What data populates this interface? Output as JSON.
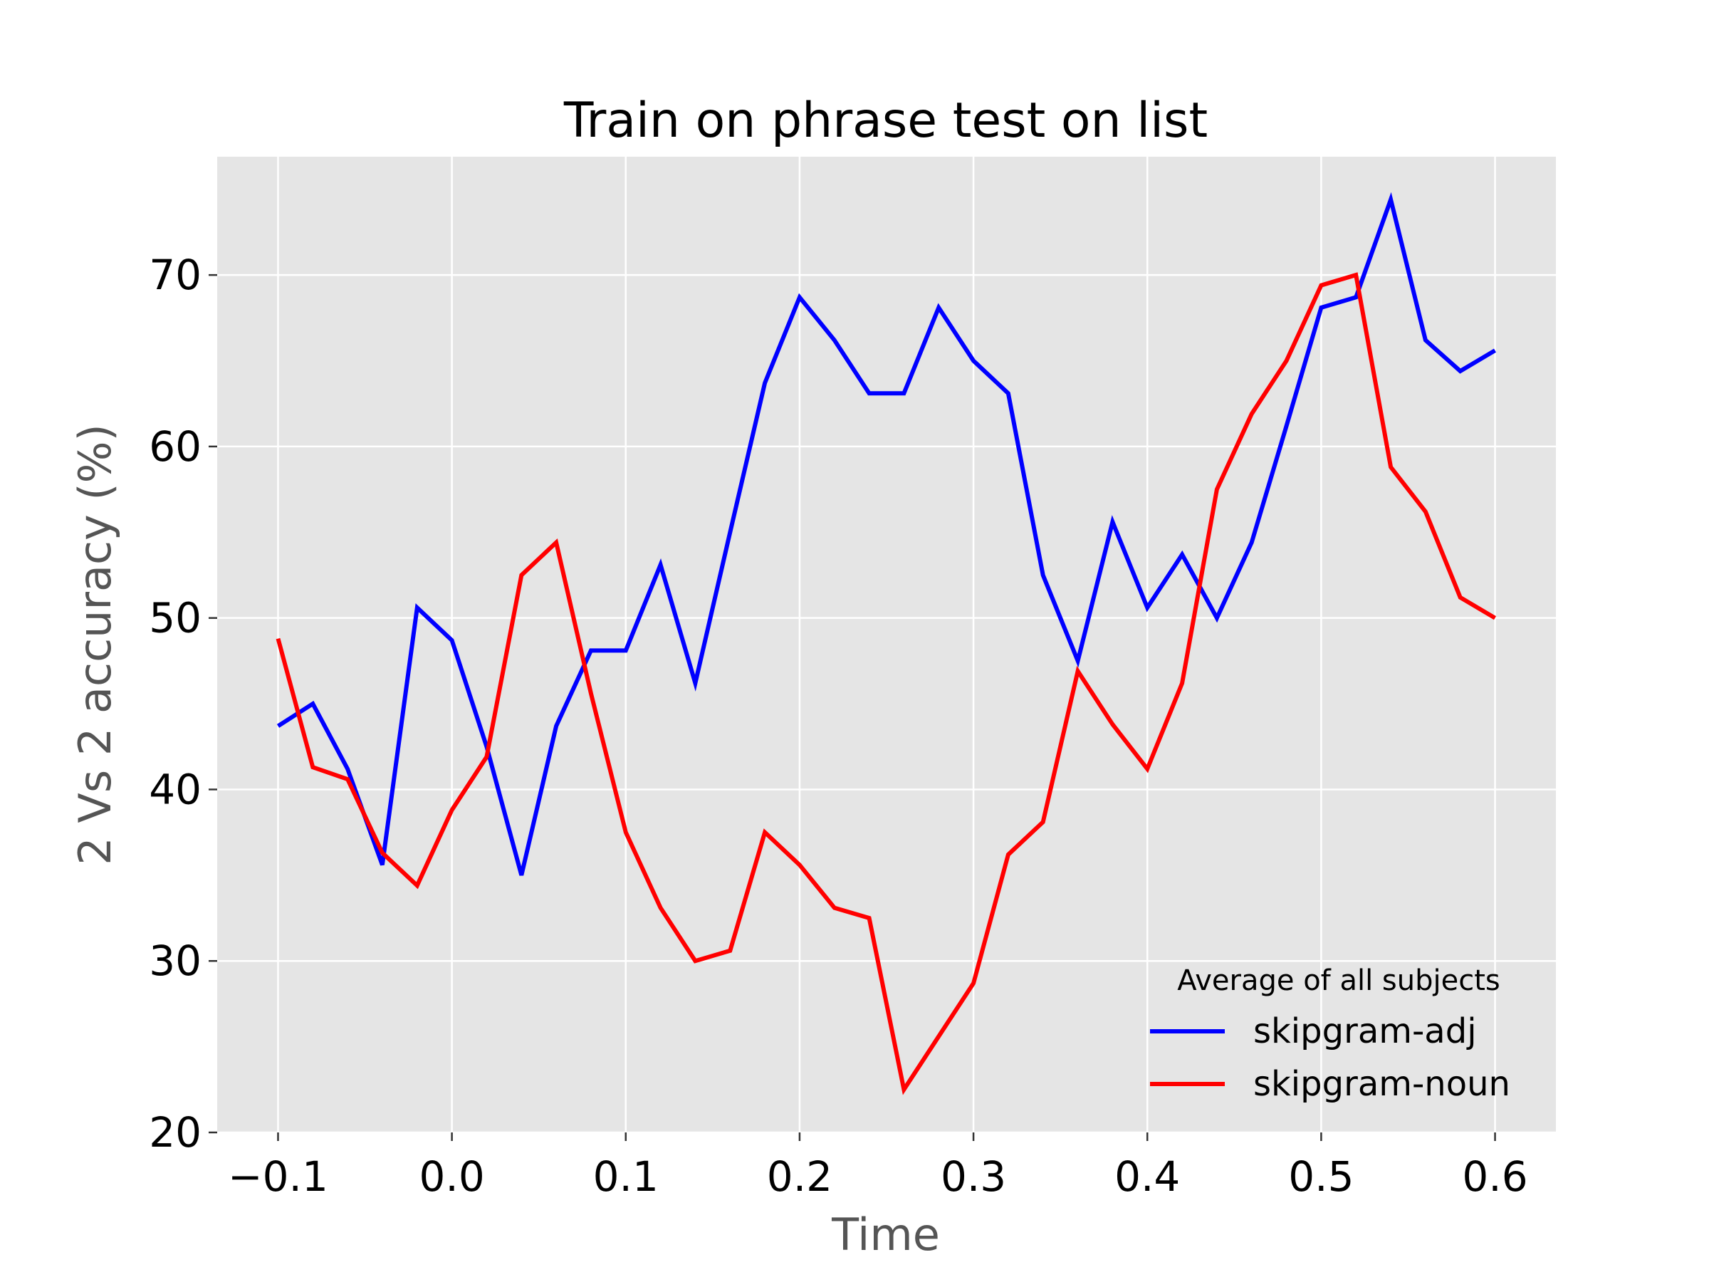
{
  "chart_data": {
    "type": "line",
    "title": "Train on phrase test on list",
    "xlabel": "Time",
    "ylabel": "2 Vs 2 accuracy (%)",
    "xlim": [
      -0.135,
      0.635
    ],
    "ylim": [
      20,
      76.9
    ],
    "x_ticks": [
      -0.1,
      0.0,
      0.1,
      0.2,
      0.3,
      0.4,
      0.5,
      0.6
    ],
    "x_tick_labels": [
      "−0.1",
      "0.0",
      "0.1",
      "0.2",
      "0.3",
      "0.4",
      "0.5",
      "0.6"
    ],
    "y_ticks": [
      20,
      30,
      40,
      50,
      60,
      70
    ],
    "y_tick_labels": [
      "20",
      "30",
      "40",
      "50",
      "60",
      "70"
    ],
    "grid": true,
    "background": "#e5e5e5",
    "legend": {
      "title": "Average of all subjects",
      "position": "lower-right"
    },
    "x": [
      -0.1,
      -0.08,
      -0.06,
      -0.04,
      -0.02,
      0.0,
      0.02,
      0.04,
      0.06,
      0.08,
      0.1,
      0.12,
      0.14,
      0.16,
      0.18,
      0.2,
      0.22,
      0.24,
      0.26,
      0.28,
      0.3,
      0.32,
      0.34,
      0.36,
      0.38,
      0.4,
      0.42,
      0.44,
      0.46,
      0.48,
      0.5,
      0.52,
      0.54,
      0.56,
      0.58,
      0.6
    ],
    "series": [
      {
        "name": "skipgram-adj",
        "color": "#0000ff",
        "values": [
          43.7,
          45.0,
          41.2,
          35.6,
          50.6,
          48.7,
          42.5,
          35.0,
          43.7,
          48.1,
          48.1,
          53.1,
          46.2,
          55.0,
          63.7,
          68.7,
          66.2,
          63.1,
          63.1,
          68.1,
          65.0,
          63.1,
          52.5,
          47.5,
          55.6,
          50.6,
          53.7,
          50.0,
          54.4,
          61.2,
          68.1,
          68.7,
          74.4,
          66.2,
          64.4,
          65.6
        ]
      },
      {
        "name": "skipgram-noun",
        "color": "#ff0000",
        "values": [
          48.8,
          41.3,
          40.6,
          36.3,
          34.4,
          38.8,
          41.9,
          52.5,
          54.4,
          45.6,
          37.5,
          33.1,
          30.0,
          30.6,
          37.5,
          35.6,
          33.1,
          32.5,
          22.5,
          25.6,
          28.7,
          36.2,
          38.1,
          46.9,
          43.8,
          41.2,
          46.2,
          57.5,
          61.9,
          65.0,
          69.4,
          70.0,
          58.8,
          56.2,
          51.2,
          50.0
        ]
      }
    ]
  }
}
